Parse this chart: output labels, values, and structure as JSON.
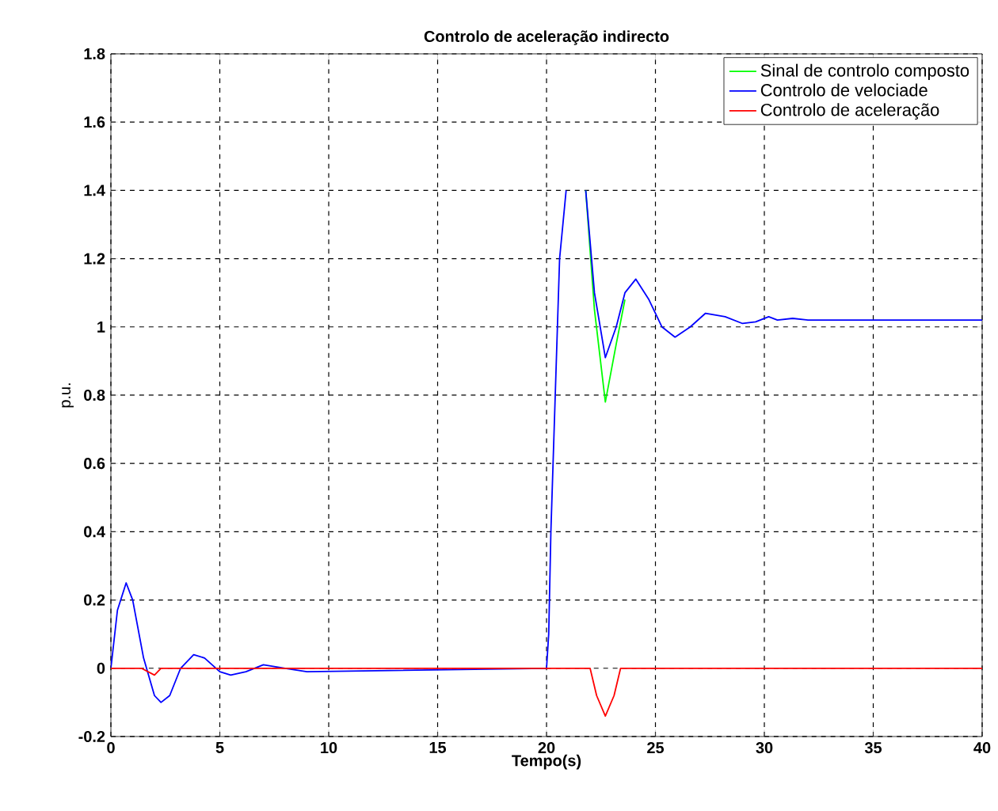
{
  "chart_data": {
    "type": "line",
    "title": "Controlo de aceleração indirecto",
    "xlabel": "Tempo(s)",
    "ylabel": "p.u.",
    "xlim": [
      0,
      40
    ],
    "xticks": [
      0,
      5,
      10,
      15,
      20,
      25,
      30,
      35,
      40
    ],
    "ylim": [
      -0.2,
      1.8
    ],
    "yticks": [
      -0.2,
      0,
      0.2,
      0.4,
      0.6,
      0.8,
      1,
      1.2,
      1.4,
      1.6,
      1.8
    ],
    "grid": true,
    "legend": "top right",
    "line_style": "solid",
    "marker": "none",
    "series": [
      {
        "name": "Sinal de controlo composto",
        "color": "#00ff00",
        "x": [
          21.8,
          22.2,
          22.7,
          23.2,
          23.6
        ],
        "values": [
          1.4,
          1.05,
          0.78,
          0.95,
          1.08
        ]
      },
      {
        "name": "Controlo de velociade",
        "color": "#0000ff",
        "x": [
          0,
          0.3,
          0.7,
          1.0,
          1.5,
          2.0,
          2.3,
          2.7,
          3.2,
          3.8,
          4.3,
          5.0,
          5.5,
          6.2,
          7.0,
          8.0,
          9.0,
          20.0,
          20.1,
          20.2,
          20.4,
          20.6,
          20.9,
          21.3,
          21.8,
          22.2,
          22.7,
          23.2,
          23.6,
          24.1,
          24.7,
          25.3,
          25.9,
          26.6,
          27.3,
          28.2,
          29.0,
          29.6,
          30.2,
          30.6,
          31.3,
          32,
          35,
          40
        ],
        "values": [
          0,
          0.17,
          0.25,
          0.2,
          0.03,
          -0.08,
          -0.1,
          -0.08,
          0.0,
          0.04,
          0.03,
          -0.01,
          -0.02,
          -0.01,
          0.01,
          0,
          -0.01,
          0,
          0.1,
          0.4,
          0.8,
          1.2,
          1.4,
          null,
          1.4,
          1.1,
          0.91,
          1.0,
          1.1,
          1.14,
          1.08,
          1.0,
          0.97,
          1.0,
          1.04,
          1.03,
          1.01,
          1.015,
          1.03,
          1.02,
          1.025,
          1.02,
          1.02,
          1.02
        ]
      },
      {
        "name": "Controlo de aceleração",
        "color": "#ff0000",
        "x": [
          0,
          1.4,
          2.0,
          2.3,
          2.5,
          22.0,
          22.3,
          22.7,
          23.1,
          23.4,
          40
        ],
        "values": [
          0,
          0,
          -0.02,
          0,
          0,
          0,
          -0.08,
          -0.14,
          -0.08,
          0,
          0
        ]
      }
    ]
  }
}
